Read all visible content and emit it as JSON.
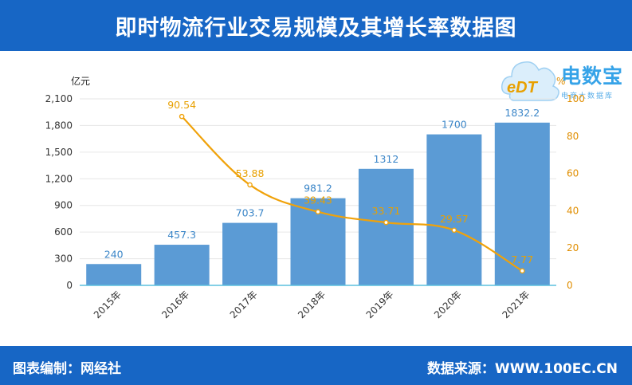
{
  "header": {
    "title": "即时物流行业交易规模及其增长率数据图"
  },
  "footer": {
    "credit": "图表编制：网经社",
    "source": "数据来源：WWW.100EC.CN"
  },
  "logo": {
    "brand": "电数宝",
    "mark_text": "eDT",
    "tagline": "电商大数据库"
  },
  "colors": {
    "header": "#1766c5",
    "bar": "#5b9bd5",
    "line": "#f0a20a",
    "bar_label": "#3b86c8",
    "line_label": "#e8a000"
  },
  "chart_data": {
    "type": "bar",
    "title": "即时物流行业交易规模及其增长率数据图",
    "categories": [
      "2015年",
      "2016年",
      "2017年",
      "2018年",
      "2019年",
      "2020年",
      "2021年"
    ],
    "series": [
      {
        "type": "bar",
        "axis": "left",
        "values": [
          240,
          457.3,
          703.7,
          981.2,
          1312,
          1700,
          1832.2
        ],
        "labels": [
          "240",
          "457.3",
          "703.7",
          "981.2",
          "1312",
          "1700",
          "1832.2"
        ]
      },
      {
        "type": "line",
        "axis": "right",
        "values": [
          null,
          90.54,
          53.88,
          39.43,
          33.71,
          29.57,
          7.77
        ],
        "labels": [
          "",
          "90.54",
          "53.88",
          "39.43",
          "33.71",
          "29.57",
          "7.77"
        ]
      }
    ],
    "y_left": {
      "unit": "亿元",
      "ylim": [
        0,
        2100
      ],
      "ticks": [
        0,
        300,
        600,
        900,
        1200,
        1500,
        1800,
        2100
      ],
      "tick_labels": [
        "0",
        "300",
        "600",
        "900",
        "1,200",
        "1,500",
        "1,800",
        "2,100"
      ]
    },
    "y_right": {
      "unit": "%",
      "ylim": [
        0,
        100
      ],
      "ticks": [
        0,
        20,
        40,
        60,
        80,
        100
      ],
      "tick_labels": [
        "0",
        "20",
        "40",
        "60",
        "80",
        "100"
      ]
    },
    "grid": true,
    "legend": "none"
  }
}
